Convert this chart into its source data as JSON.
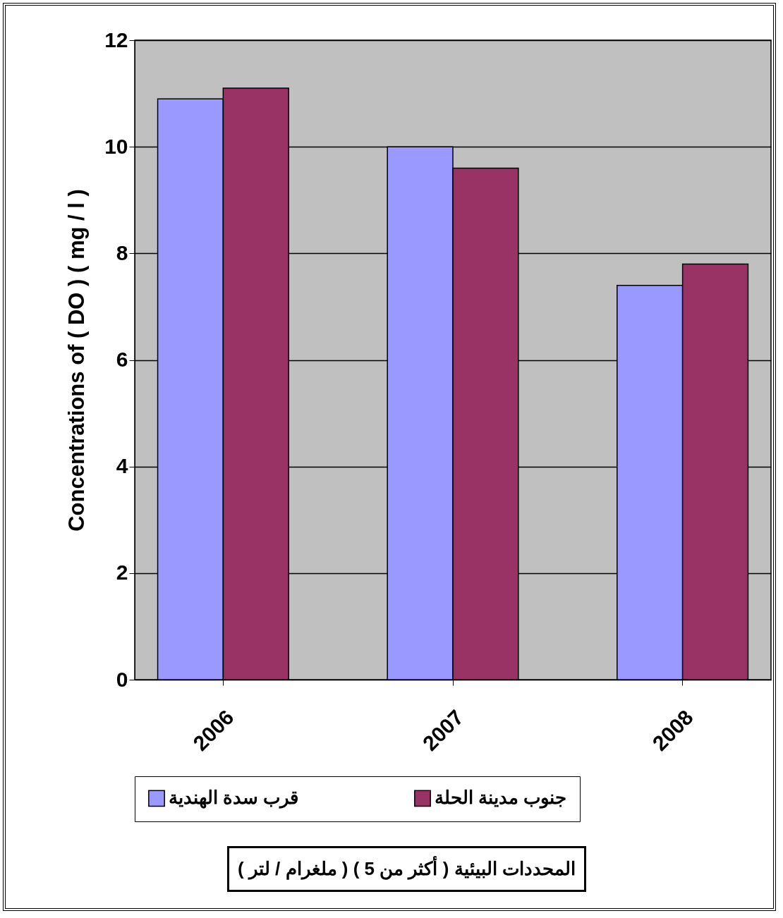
{
  "chart_data": {
    "type": "bar",
    "ylabel": "Concentrations  of  ( DO ) ( mg / l )",
    "categories": [
      "2006",
      "2007",
      "2008"
    ],
    "series": [
      {
        "name": "قرب سدة الهندية",
        "color": "#9999ff",
        "values": [
          10.9,
          10.0,
          7.4
        ]
      },
      {
        "name": "جنوب مدينة الحلة",
        "color": "#993366",
        "values": [
          11.1,
          9.6,
          7.8
        ]
      }
    ],
    "ylim": [
      0,
      12
    ],
    "yticks": [
      0,
      2,
      4,
      6,
      8,
      10,
      12
    ],
    "grid": "y",
    "legend": "bottom",
    "annotations": [
      "المحددات البيئية ( أكثر من  5 ) ( ملغرام / لتر )"
    ]
  }
}
